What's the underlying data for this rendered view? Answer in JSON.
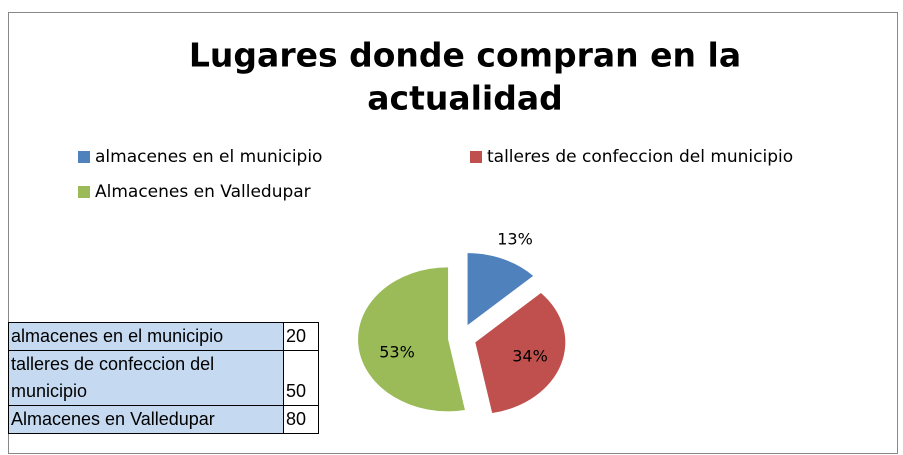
{
  "chart_data": {
    "type": "pie",
    "title": [
      "Lugares donde compran en la",
      "actualidad"
    ],
    "categories": [
      "almacenes en el municipio",
      "talleres de confeccion del municipio",
      "Almacenes en Valledupar"
    ],
    "values": [
      13,
      34,
      53
    ],
    "value_labels": [
      "13%",
      "34%",
      "53%"
    ],
    "colors": [
      "#4f81bd",
      "#c0504d",
      "#9bbb59"
    ],
    "legend": "top"
  },
  "table": {
    "rows": [
      [
        "almacenes en el municipio",
        20
      ],
      [
        "talleres de confeccion del municipio",
        50
      ],
      [
        "Almacenes en Valledupar",
        80
      ]
    ]
  }
}
